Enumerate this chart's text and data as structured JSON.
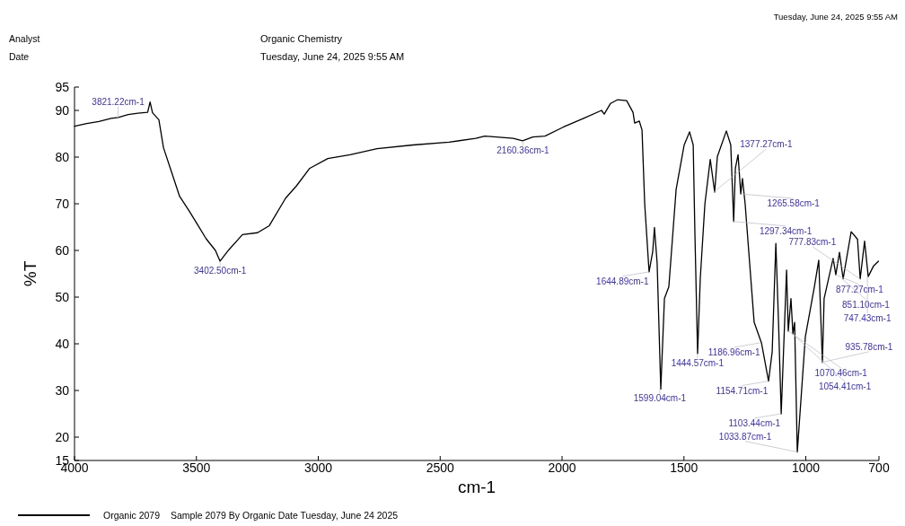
{
  "chart_data": {
    "type": "line",
    "title": "Organic Chemistry",
    "subtitle": "Tuesday, June 24, 2025 9:55 AM",
    "xlabel": "cm-1",
    "ylabel": "%T",
    "xlim": [
      4000,
      700
    ],
    "xticks": [
      4000,
      3500,
      3000,
      2500,
      2000,
      1500,
      1000,
      700
    ],
    "ylim": [
      15,
      95
    ],
    "yticks": [
      15,
      20,
      30,
      40,
      50,
      60,
      70,
      80,
      90,
      95
    ],
    "grid": false,
    "legend": "bottom",
    "marker": "none",
    "line_style": "solid",
    "series": [
      {
        "name": "Organic 2079",
        "color": "#000000",
        "x": [
          4000,
          3950,
          3900,
          3850,
          3821,
          3780,
          3740,
          3700,
          3690,
          3680,
          3654,
          3635,
          3600,
          3569,
          3530,
          3495,
          3460,
          3422,
          3403,
          3366,
          3311,
          3249,
          3201,
          3134,
          3090,
          3035,
          2961,
          2869,
          2759,
          2611,
          2464,
          2354,
          2317,
          2269,
          2200,
          2162,
          2120,
          2070,
          1996,
          1912,
          1838,
          1827,
          1801,
          1772,
          1735,
          1709,
          1702,
          1683,
          1672,
          1661,
          1643,
          1628,
          1621,
          1610,
          1595,
          1580,
          1562,
          1532,
          1499,
          1477,
          1462,
          1455,
          1444,
          1433,
          1414,
          1392,
          1374,
          1363,
          1326,
          1308,
          1296,
          1289,
          1278,
          1267,
          1260,
          1249,
          1212,
          1182,
          1153,
          1138,
          1123,
          1112,
          1101,
          1079,
          1072,
          1061,
          1053,
          1046,
          1035,
          1002,
          965,
          947,
          932,
          925,
          888,
          877,
          862,
          847,
          814,
          788,
          777,
          759,
          744,
          722,
          702
        ],
        "values": [
          86.6,
          87.2,
          87.6,
          88.3,
          88.5,
          89.1,
          89.4,
          89.6,
          91.8,
          89.5,
          88,
          82,
          76.5,
          71.6,
          68.5,
          65.5,
          62.5,
          60,
          57.7,
          60.2,
          63.4,
          63.8,
          65.3,
          71.2,
          73.8,
          77.6,
          79.7,
          80.5,
          81.8,
          82.6,
          83.2,
          84,
          84.5,
          84.3,
          84,
          83.5,
          84.3,
          84.5,
          86.4,
          88.3,
          90,
          89.2,
          91.5,
          92.3,
          92.1,
          89.6,
          87.3,
          87.7,
          85.8,
          70,
          55.4,
          59.8,
          64.9,
          57.3,
          30.3,
          49.7,
          52.2,
          73.1,
          82.6,
          85.4,
          82.6,
          63.6,
          37.9,
          54,
          70,
          79.5,
          72.5,
          80.1,
          85.6,
          82.6,
          66.2,
          77.6,
          80.5,
          72.1,
          75.4,
          70,
          44.6,
          40.2,
          32,
          38.3,
          61.5,
          44.6,
          25,
          55.8,
          42.7,
          49.7,
          42.1,
          44.6,
          16.8,
          41.5,
          52.2,
          57.9,
          36,
          49.7,
          58.3,
          54.8,
          59.6,
          53.9,
          64,
          62.4,
          53.9,
          62,
          54.4,
          56.7,
          57.7
        ]
      }
    ],
    "annotations": [
      "Analyst",
      "Date",
      "Tuesday, June 24, 2025 9:55 AM",
      "Sample 2079 By Organic Date Tuesday, June 24 2025",
      {
        "text": "3821.22cm-1",
        "x": 3821.22,
        "y": 88.5
      },
      {
        "text": "3402.50cm-1",
        "x": 3402.5,
        "y": 57.7
      },
      {
        "text": "2160.36cm-1",
        "x": 2160.36,
        "y": 83.5
      },
      {
        "text": "1644.89cm-1",
        "x": 1644.89,
        "y": 55.4
      },
      {
        "text": "1599.04cm-1",
        "x": 1599.04,
        "y": 30.3
      },
      {
        "text": "1444.57cm-1",
        "x": 1444.57,
        "y": 37.9
      },
      {
        "text": "1377.27cm-1",
        "x": 1377.27,
        "y": 72.5
      },
      {
        "text": "1297.34cm-1",
        "x": 1297.34,
        "y": 66.2
      },
      {
        "text": "1265.58cm-1",
        "x": 1265.58,
        "y": 72.1
      },
      {
        "text": "1186.96cm-1",
        "x": 1186.96,
        "y": 40.2
      },
      {
        "text": "1154.71cm-1",
        "x": 1154.71,
        "y": 32
      },
      {
        "text": "1103.44cm-1",
        "x": 1103.44,
        "y": 25
      },
      {
        "text": "1070.46cm-1",
        "x": 1070.46,
        "y": 42.7
      },
      {
        "text": "1054.41cm-1",
        "x": 1054.41,
        "y": 42.1
      },
      {
        "text": "1033.87cm-1",
        "x": 1033.87,
        "y": 16.8
      },
      {
        "text": "935.78cm-1",
        "x": 935.78,
        "y": 36
      },
      {
        "text": "877.27cm-1",
        "x": 877.27,
        "y": 54.8
      },
      {
        "text": "851.10cm-1",
        "x": 851.1,
        "y": 53.9
      },
      {
        "text": "777.83cm-1",
        "x": 777.83,
        "y": 53.9
      },
      {
        "text": "747.43cm-1",
        "x": 747.43,
        "y": 54.4
      }
    ]
  }
}
